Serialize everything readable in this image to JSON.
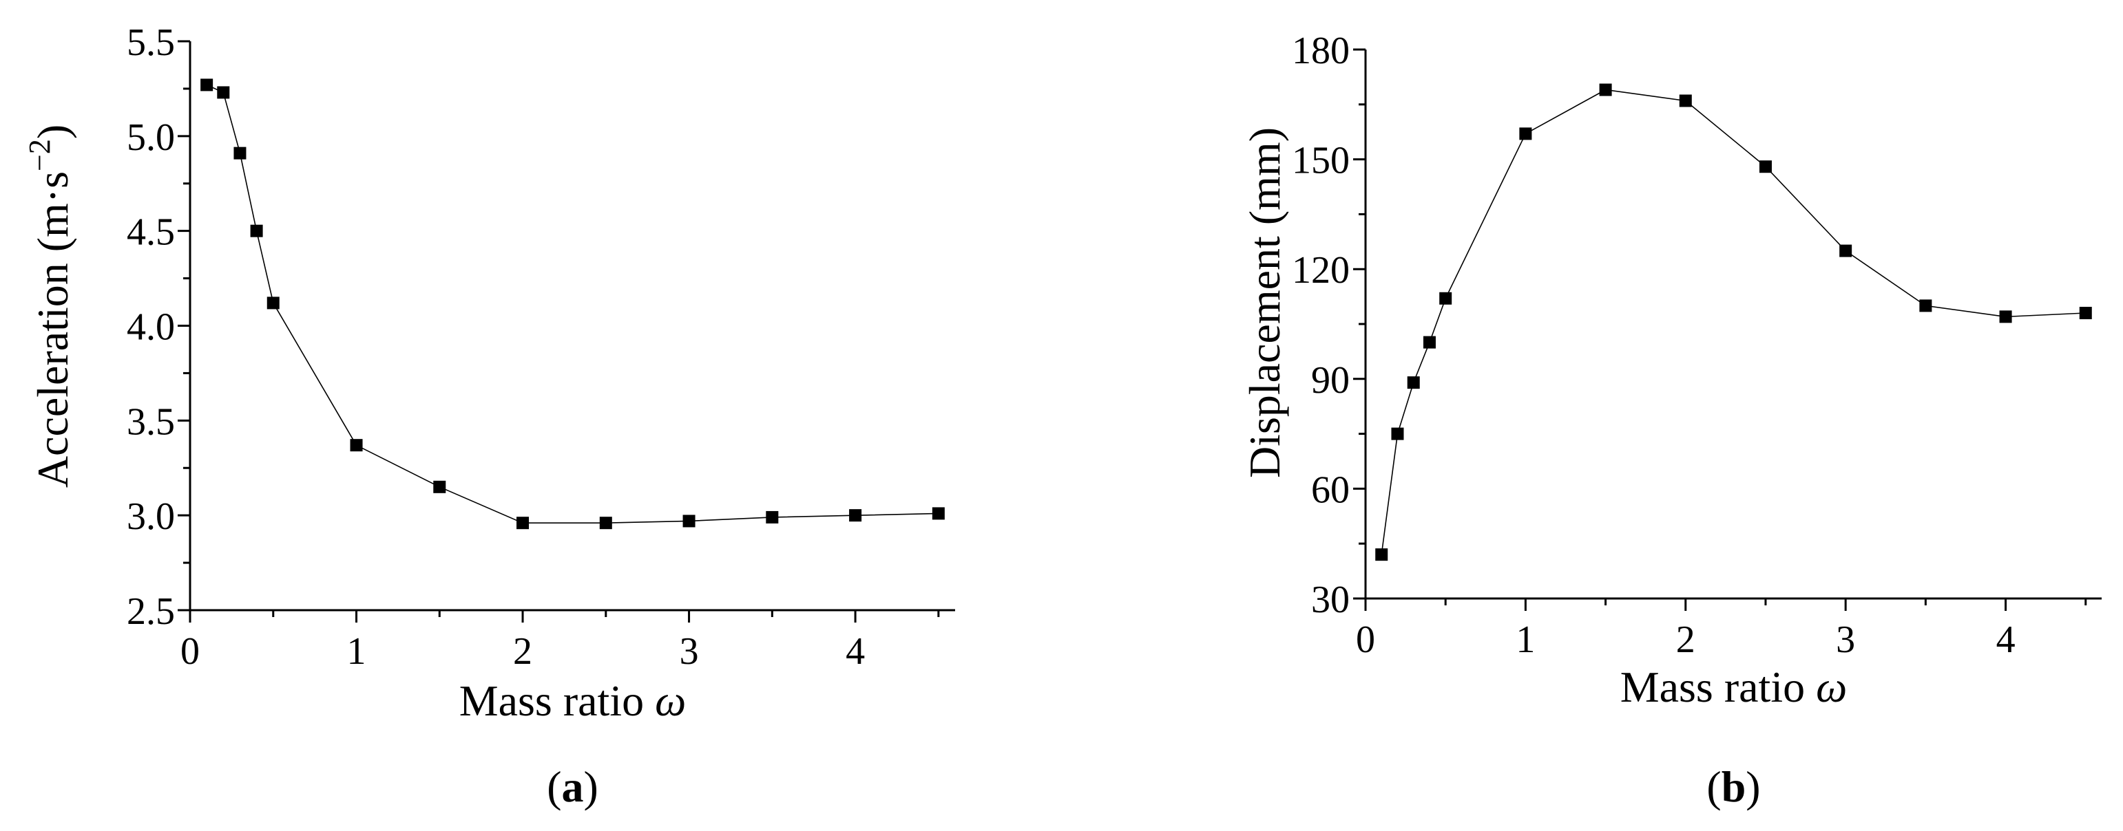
{
  "chart_data": [
    {
      "panel": "(a)",
      "panel_letter": "a",
      "type": "line",
      "xlabel": "Mass ratio",
      "xlabel_symbol": "ω",
      "ylabel": "Acceleration (m·s",
      "ylabel_exp": "−2",
      "ylabel_end": ")",
      "xlim": [
        0,
        4.6
      ],
      "ylim": [
        2.5,
        5.5
      ],
      "xticks": [
        0,
        1,
        2,
        3,
        4
      ],
      "xtick_labels": [
        "0",
        "1",
        "2",
        "3",
        "4"
      ],
      "yticks": [
        2.5,
        3.0,
        3.5,
        4.0,
        4.5,
        5.0,
        5.5
      ],
      "ytick_labels": [
        "2.5",
        "3.0",
        "3.5",
        "4.0",
        "4.5",
        "5.0",
        "5.5"
      ],
      "grid": false,
      "marker": "square",
      "series": [
        {
          "x": [
            0.1,
            0.2,
            0.3,
            0.4,
            0.5,
            1.0,
            1.5,
            2.0,
            2.5,
            3.0,
            3.5,
            4.0,
            4.5
          ],
          "y": [
            5.27,
            5.23,
            4.91,
            4.5,
            4.12,
            3.37,
            3.15,
            2.96,
            2.96,
            2.97,
            2.99,
            3.0,
            3.01
          ]
        }
      ]
    },
    {
      "panel": "(b)",
      "panel_letter": "b",
      "type": "line",
      "xlabel": "Mass ratio",
      "xlabel_symbol": "ω",
      "ylabel": "Displacement (mm)",
      "ylabel_exp": "",
      "ylabel_end": "",
      "xlim": [
        0,
        4.6
      ],
      "ylim": [
        30,
        180
      ],
      "xticks": [
        0,
        1,
        2,
        3,
        4
      ],
      "xtick_labels": [
        "0",
        "1",
        "2",
        "3",
        "4"
      ],
      "yticks": [
        30,
        60,
        90,
        120,
        150,
        180
      ],
      "ytick_labels": [
        "30",
        "60",
        "90",
        "120",
        "150",
        "180"
      ],
      "grid": false,
      "marker": "square",
      "series": [
        {
          "x": [
            0.1,
            0.2,
            0.3,
            0.4,
            0.5,
            1.0,
            1.5,
            2.0,
            2.5,
            3.0,
            3.5,
            4.0,
            4.5
          ],
          "y": [
            42,
            75,
            89,
            100,
            112,
            157,
            169,
            166,
            148,
            125,
            110,
            107,
            108
          ]
        }
      ]
    }
  ]
}
